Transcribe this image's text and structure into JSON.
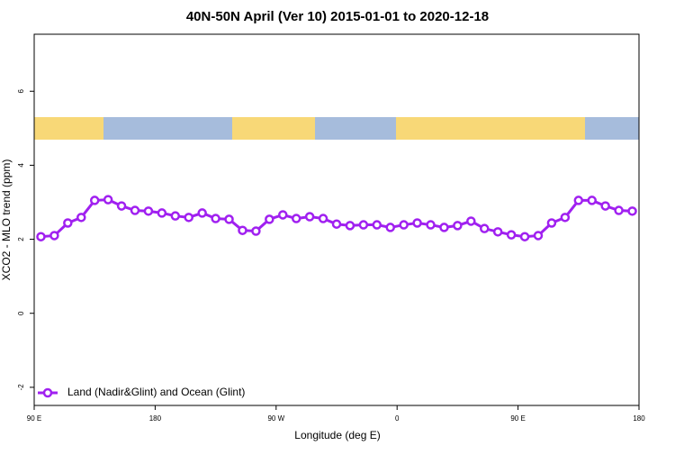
{
  "chart_data": {
    "type": "line",
    "title": "40N-50N April (Ver 10)   2015-01-01 to 2020-12-18",
    "x_label": "Longitude (deg E)",
    "y_label": "XCO2 - MLO trend (ppm)",
    "x": [
      95,
      105,
      115,
      125,
      135,
      145,
      155,
      165,
      175,
      185,
      195,
      205,
      215,
      225,
      235,
      245,
      255,
      265,
      275,
      285,
      295,
      305,
      315,
      325,
      335,
      345,
      355,
      365,
      375,
      385,
      395,
      405,
      415,
      425,
      435,
      445,
      455,
      465,
      475,
      485,
      495,
      505,
      515,
      525,
      535
    ],
    "series": [
      {
        "name": "Land (Nadir&Glint) and Ocean (Glint)",
        "color": "#a020f0",
        "values": [
          2.07,
          2.1,
          2.44,
          2.59,
          3.05,
          3.07,
          2.9,
          2.78,
          2.76,
          2.71,
          2.63,
          2.59,
          2.71,
          2.56,
          2.54,
          2.24,
          2.22,
          2.54,
          2.66,
          2.56,
          2.61,
          2.56,
          2.41,
          2.37,
          2.39,
          2.39,
          2.32,
          2.39,
          2.44,
          2.39,
          2.32,
          2.37,
          2.49,
          2.29,
          2.2,
          2.12,
          2.07,
          2.1,
          2.44,
          2.59,
          3.05,
          3.05,
          2.9,
          2.78,
          2.76
        ]
      }
    ],
    "xlim": [
      90,
      540
    ],
    "xticks": [
      {
        "value": 90,
        "label": "90 E"
      },
      180,
      {
        "value": 270,
        "label": "90 W"
      },
      {
        "value": 360,
        "label": "0"
      },
      {
        "value": 450,
        "label": "90 E"
      },
      {
        "value": 540,
        "label": "180"
      }
    ],
    "ylim": [
      -2.49,
      7.54
    ],
    "yticks": [
      -2,
      0,
      2,
      4,
      6
    ],
    "legend": "bottomleft"
  }
}
